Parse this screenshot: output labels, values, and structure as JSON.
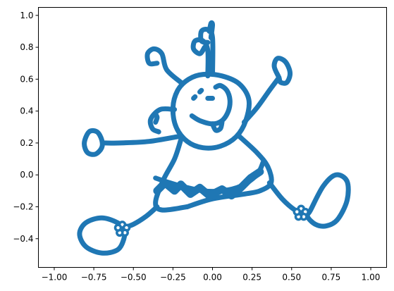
{
  "chart_data": {
    "type": "scatter",
    "title": "",
    "xlabel": "",
    "ylabel": "",
    "xlim": [
      -1.1,
      1.1
    ],
    "ylim": [
      -0.58,
      1.05
    ],
    "grid": false,
    "legend": "none",
    "x_ticks": [
      -1.0,
      -0.75,
      -0.5,
      -0.25,
      0.0,
      0.25,
      0.5,
      0.75,
      1.0
    ],
    "x_tick_labels": [
      "−1.00",
      "−0.75",
      "−0.50",
      "−0.25",
      "0.00",
      "0.25",
      "0.50",
      "0.75",
      "1.00"
    ],
    "y_ticks": [
      -0.4,
      -0.2,
      0.0,
      0.2,
      0.4,
      0.6,
      0.8,
      1.0
    ],
    "y_tick_labels": [
      "−0.4",
      "−0.2",
      "0.0",
      "0.2",
      "0.4",
      "0.6",
      "0.8",
      "1.0"
    ],
    "series": [
      {
        "color": "#1f77b4",
        "marker": "dense filled circles forming a cartoon child figure",
        "strokes": [
          {
            "part": "head",
            "closed": true,
            "points": [
              [
                -0.06,
                0.63
              ],
              [
                0.06,
                0.62
              ],
              [
                0.17,
                0.57
              ],
              [
                0.23,
                0.47
              ],
              [
                0.21,
                0.34
              ],
              [
                0.15,
                0.24
              ],
              [
                0.05,
                0.18
              ],
              [
                -0.06,
                0.17
              ],
              [
                -0.16,
                0.21
              ],
              [
                -0.23,
                0.3
              ],
              [
                -0.25,
                0.42
              ],
              [
                -0.22,
                0.53
              ],
              [
                -0.15,
                0.6
              ]
            ]
          },
          {
            "part": "curl-1",
            "closed": false,
            "points": [
              [
                -0.03,
                0.62
              ],
              [
                -0.03,
                0.78
              ],
              [
                -0.06,
                0.84
              ],
              [
                -0.11,
                0.84
              ],
              [
                -0.12,
                0.79
              ],
              [
                -0.08,
                0.76
              ],
              [
                -0.05,
                0.8
              ]
            ]
          },
          {
            "part": "curl-2",
            "closed": false,
            "points": [
              [
                0.0,
                0.63
              ],
              [
                0.0,
                0.86
              ],
              [
                -0.03,
                0.91
              ],
              [
                -0.07,
                0.9
              ],
              [
                -0.07,
                0.84
              ],
              [
                -0.03,
                0.83
              ]
            ]
          },
          {
            "part": "curl-3",
            "closed": false,
            "points": [
              [
                -0.02,
                0.9
              ],
              [
                -0.01,
                0.95
              ],
              [
                0.0,
                0.94
              ],
              [
                -0.01,
                0.86
              ]
            ]
          },
          {
            "part": "curl-4",
            "closed": false,
            "points": [
              [
                -0.2,
                0.58
              ],
              [
                -0.29,
                0.66
              ],
              [
                -0.32,
                0.76
              ],
              [
                -0.37,
                0.79
              ],
              [
                -0.41,
                0.76
              ],
              [
                -0.4,
                0.7
              ],
              [
                -0.35,
                0.7
              ]
            ]
          },
          {
            "part": "ear",
            "closed": false,
            "points": [
              [
                -0.24,
                0.41
              ],
              [
                -0.33,
                0.41
              ],
              [
                -0.39,
                0.35
              ],
              [
                -0.38,
                0.29
              ],
              [
                -0.34,
                0.27
              ]
            ]
          },
          {
            "part": "ear-inner",
            "closed": false,
            "points": [
              [
                -0.36,
                0.38
              ],
              [
                -0.35,
                0.36
              ],
              [
                -0.36,
                0.33
              ]
            ]
          },
          {
            "part": "eye-left",
            "closed": false,
            "points": [
              [
                -0.12,
                0.48
              ],
              [
                -0.11,
                0.49
              ]
            ]
          },
          {
            "part": "eye-right",
            "closed": false,
            "points": [
              [
                -0.08,
                0.52
              ],
              [
                -0.07,
                0.53
              ]
            ]
          },
          {
            "part": "nose",
            "closed": false,
            "points": [
              [
                -0.03,
                0.48
              ],
              [
                0.0,
                0.48
              ]
            ]
          },
          {
            "part": "mouth",
            "closed": false,
            "points": [
              [
                -0.13,
                0.37
              ],
              [
                -0.08,
                0.34
              ],
              [
                0.0,
                0.32
              ],
              [
                0.06,
                0.34
              ],
              [
                0.1,
                0.4
              ],
              [
                0.11,
                0.47
              ],
              [
                0.09,
                0.53
              ],
              [
                0.05,
                0.56
              ],
              [
                0.02,
                0.55
              ]
            ]
          },
          {
            "part": "tongue",
            "closed": false,
            "points": [
              [
                0.0,
                0.32
              ],
              [
                0.02,
                0.28
              ],
              [
                0.05,
                0.29
              ],
              [
                0.06,
                0.33
              ]
            ]
          },
          {
            "part": "arm-left",
            "closed": false,
            "points": [
              [
                -0.22,
                0.24
              ],
              [
                -0.4,
                0.21
              ],
              [
                -0.58,
                0.2
              ],
              [
                -0.68,
                0.2
              ]
            ]
          },
          {
            "part": "hand-left",
            "closed": true,
            "points": [
              [
                -0.7,
                0.22
              ],
              [
                -0.73,
                0.27
              ],
              [
                -0.78,
                0.27
              ],
              [
                -0.81,
                0.2
              ],
              [
                -0.79,
                0.14
              ],
              [
                -0.74,
                0.13
              ],
              [
                -0.7,
                0.17
              ]
            ]
          },
          {
            "part": "arm-right",
            "closed": false,
            "points": [
              [
                0.2,
                0.33
              ],
              [
                0.28,
                0.42
              ],
              [
                0.36,
                0.53
              ],
              [
                0.42,
                0.61
              ]
            ]
          },
          {
            "part": "hand-right",
            "closed": true,
            "points": [
              [
                0.42,
                0.61
              ],
              [
                0.39,
                0.68
              ],
              [
                0.41,
                0.73
              ],
              [
                0.46,
                0.71
              ],
              [
                0.49,
                0.64
              ],
              [
                0.47,
                0.58
              ],
              [
                0.43,
                0.58
              ]
            ]
          },
          {
            "part": "body-left",
            "closed": false,
            "points": [
              [
                -0.2,
                0.22
              ],
              [
                -0.24,
                0.1
              ],
              [
                -0.31,
                -0.03
              ],
              [
                -0.36,
                -0.17
              ],
              [
                -0.32,
                -0.22
              ],
              [
                -0.16,
                -0.2
              ]
            ]
          },
          {
            "part": "body-right",
            "closed": false,
            "points": [
              [
                0.16,
                0.25
              ],
              [
                0.28,
                0.14
              ],
              [
                0.35,
                0.05
              ],
              [
                0.37,
                -0.05
              ],
              [
                0.3,
                -0.1
              ],
              [
                0.2,
                -0.12
              ],
              [
                0.0,
                -0.15
              ],
              [
                -0.16,
                -0.2
              ]
            ]
          },
          {
            "part": "skirt",
            "closed": false,
            "points": [
              [
                -0.36,
                -0.02
              ],
              [
                -0.3,
                -0.04
              ],
              [
                -0.2,
                -0.07
              ],
              [
                -0.06,
                -0.1
              ],
              [
                0.06,
                -0.1
              ],
              [
                0.18,
                -0.07
              ],
              [
                0.28,
                0.0
              ],
              [
                0.32,
                0.08
              ]
            ]
          },
          {
            "part": "leg-left",
            "closed": false,
            "points": [
              [
                -0.35,
                -0.2
              ],
              [
                -0.42,
                -0.26
              ],
              [
                -0.5,
                -0.31
              ],
              [
                -0.56,
                -0.33
              ]
            ]
          },
          {
            "part": "foot-left",
            "closed": true,
            "points": [
              [
                -0.6,
                -0.3
              ],
              [
                -0.7,
                -0.27
              ],
              [
                -0.8,
                -0.3
              ],
              [
                -0.84,
                -0.37
              ],
              [
                -0.8,
                -0.45
              ],
              [
                -0.7,
                -0.49
              ],
              [
                -0.6,
                -0.47
              ],
              [
                -0.56,
                -0.4
              ],
              [
                -0.56,
                -0.34
              ]
            ]
          },
          {
            "part": "leg-right",
            "closed": false,
            "points": [
              [
                0.36,
                -0.05
              ],
              [
                0.44,
                -0.15
              ],
              [
                0.52,
                -0.22
              ],
              [
                0.57,
                -0.24
              ]
            ]
          },
          {
            "part": "foot-right",
            "closed": true,
            "points": [
              [
                0.62,
                -0.22
              ],
              [
                0.7,
                -0.07
              ],
              [
                0.78,
                0.0
              ],
              [
                0.85,
                -0.04
              ],
              [
                0.85,
                -0.16
              ],
              [
                0.79,
                -0.28
              ],
              [
                0.72,
                -0.32
              ],
              [
                0.65,
                -0.31
              ],
              [
                0.6,
                -0.26
              ]
            ]
          }
        ],
        "flowers": [
          {
            "part": "flower-left",
            "cx": -0.57,
            "cy": -0.34,
            "r": 0.04
          },
          {
            "part": "flower-right",
            "cx": 0.56,
            "cy": -0.24,
            "r": 0.04
          }
        ],
        "scribble": [
          [
            -0.35,
            -0.1
          ],
          [
            -0.3,
            -0.05
          ],
          [
            -0.24,
            -0.1
          ],
          [
            -0.2,
            -0.06
          ],
          [
            -0.14,
            -0.12
          ],
          [
            -0.08,
            -0.08
          ],
          [
            -0.02,
            -0.13
          ],
          [
            0.06,
            -0.09
          ],
          [
            0.12,
            -0.13
          ],
          [
            0.18,
            -0.08
          ],
          [
            0.24,
            -0.02
          ],
          [
            0.3,
            0.02
          ]
        ]
      }
    ]
  }
}
